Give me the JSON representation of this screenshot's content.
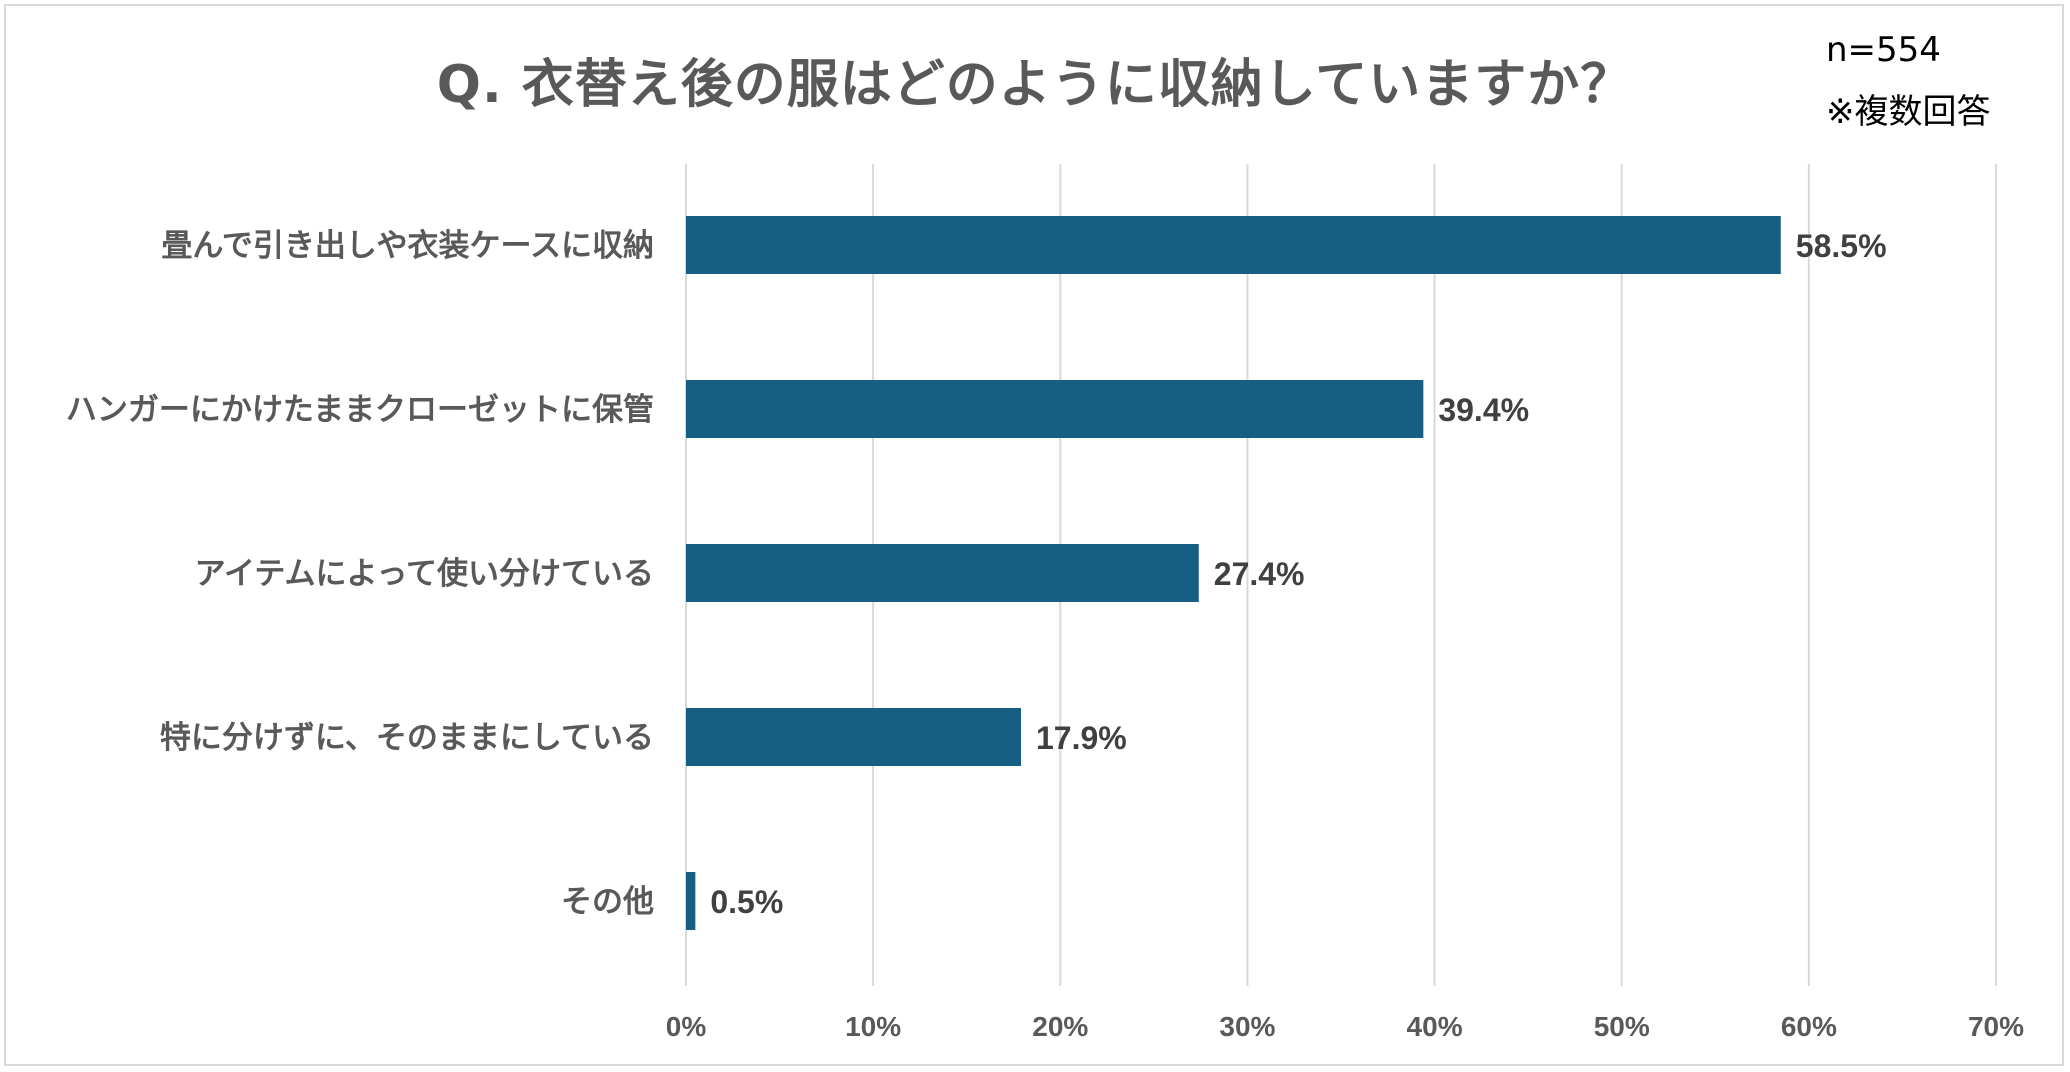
{
  "title": "Q. 衣替え後の服はどのように収納していますか？",
  "sample_size": "n=554",
  "answer_note": "※複数回答",
  "colors": {
    "bar": "#165f82",
    "grid": "#d9d9d9",
    "frame": "#d9d9d9",
    "title": "#595959"
  },
  "chart_data": {
    "type": "bar",
    "orientation": "horizontal",
    "title": "Q. 衣替え後の服はどのように収納していますか？",
    "categories": [
      "畳んで引き出しや衣装ケースに収納",
      "ハンガーにかけたままクローゼットに保管",
      "アイテムによって使い分けている",
      "特に分けずに、そのままにしている",
      "その他"
    ],
    "values": [
      58.5,
      39.4,
      27.4,
      17.9,
      0.5
    ],
    "value_labels": [
      "58.5%",
      "39.4%",
      "27.4%",
      "17.9%",
      "0.5%"
    ],
    "x_ticks": [
      0,
      10,
      20,
      30,
      40,
      50,
      60,
      70
    ],
    "x_tick_labels": [
      "0%",
      "10%",
      "20%",
      "30%",
      "40%",
      "50%",
      "60%",
      "70%"
    ],
    "xlim": [
      0,
      70
    ],
    "grid": true,
    "legend": "none"
  }
}
